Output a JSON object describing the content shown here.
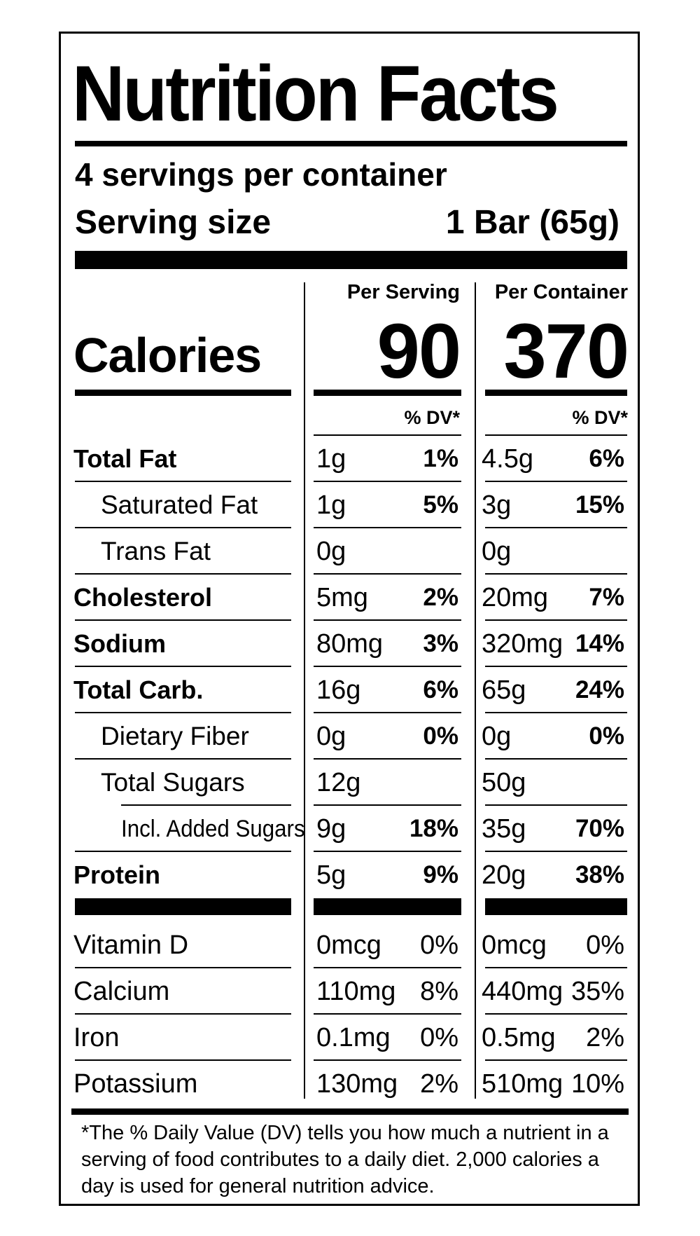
{
  "title": "Nutrition Facts",
  "servings": "4 servings per container",
  "serving_size_label": "Serving size",
  "serving_size_value": "1 Bar (65g)",
  "per_serving_label": "Per Serving",
  "per_container_label": "Per Container",
  "calories_label": "Calories",
  "calories_per_serving": "90",
  "calories_per_container": "370",
  "dv_label": "% DV*",
  "nutrients": [
    {
      "name": "Total Fat",
      "ps_amount": "1g",
      "ps_dv": "1%",
      "pc_amount": "4.5g",
      "pc_dv": "6%"
    },
    {
      "name": "Saturated Fat",
      "ps_amount": "1g",
      "ps_dv": "5%",
      "pc_amount": "3g",
      "pc_dv": "15%"
    },
    {
      "name": "Trans Fat",
      "ps_amount": "0g",
      "ps_dv": "",
      "pc_amount": "0g",
      "pc_dv": ""
    },
    {
      "name": "Cholesterol",
      "ps_amount": "5mg",
      "ps_dv": "2%",
      "pc_amount": "20mg",
      "pc_dv": "7%"
    },
    {
      "name": "Sodium",
      "ps_amount": "80mg",
      "ps_dv": "3%",
      "pc_amount": "320mg",
      "pc_dv": "14%"
    },
    {
      "name": "Total Carb.",
      "ps_amount": "16g",
      "ps_dv": "6%",
      "pc_amount": "65g",
      "pc_dv": "24%"
    },
    {
      "name": "Dietary Fiber",
      "ps_amount": "0g",
      "ps_dv": "0%",
      "pc_amount": "0g",
      "pc_dv": "0%"
    },
    {
      "name": "Total Sugars",
      "ps_amount": "12g",
      "ps_dv": "",
      "pc_amount": "50g",
      "pc_dv": ""
    },
    {
      "name": "Incl. Added Sugars",
      "ps_amount": "9g",
      "ps_dv": "18%",
      "pc_amount": "35g",
      "pc_dv": "70%"
    },
    {
      "name": "Protein",
      "ps_amount": "5g",
      "ps_dv": "9%",
      "pc_amount": "20g",
      "pc_dv": "38%"
    }
  ],
  "vitamins": [
    {
      "name": "Vitamin D",
      "ps_amount": "0mcg",
      "ps_dv": "0%",
      "pc_amount": "0mcg",
      "pc_dv": "0%"
    },
    {
      "name": "Calcium",
      "ps_amount": "110mg",
      "ps_dv": "8%",
      "pc_amount": "440mg",
      "pc_dv": "35%"
    },
    {
      "name": "Iron",
      "ps_amount": "0.1mg",
      "ps_dv": "0%",
      "pc_amount": "0.5mg",
      "pc_dv": "2%"
    },
    {
      "name": "Potassium",
      "ps_amount": "130mg",
      "ps_dv": "2%",
      "pc_amount": "510mg",
      "pc_dv": "10%"
    }
  ],
  "footnote": "*The % Daily Value (DV) tells you how much a nutrient in a serving of food contributes to a daily diet. 2,000 calories a day is used for general nutrition advice."
}
